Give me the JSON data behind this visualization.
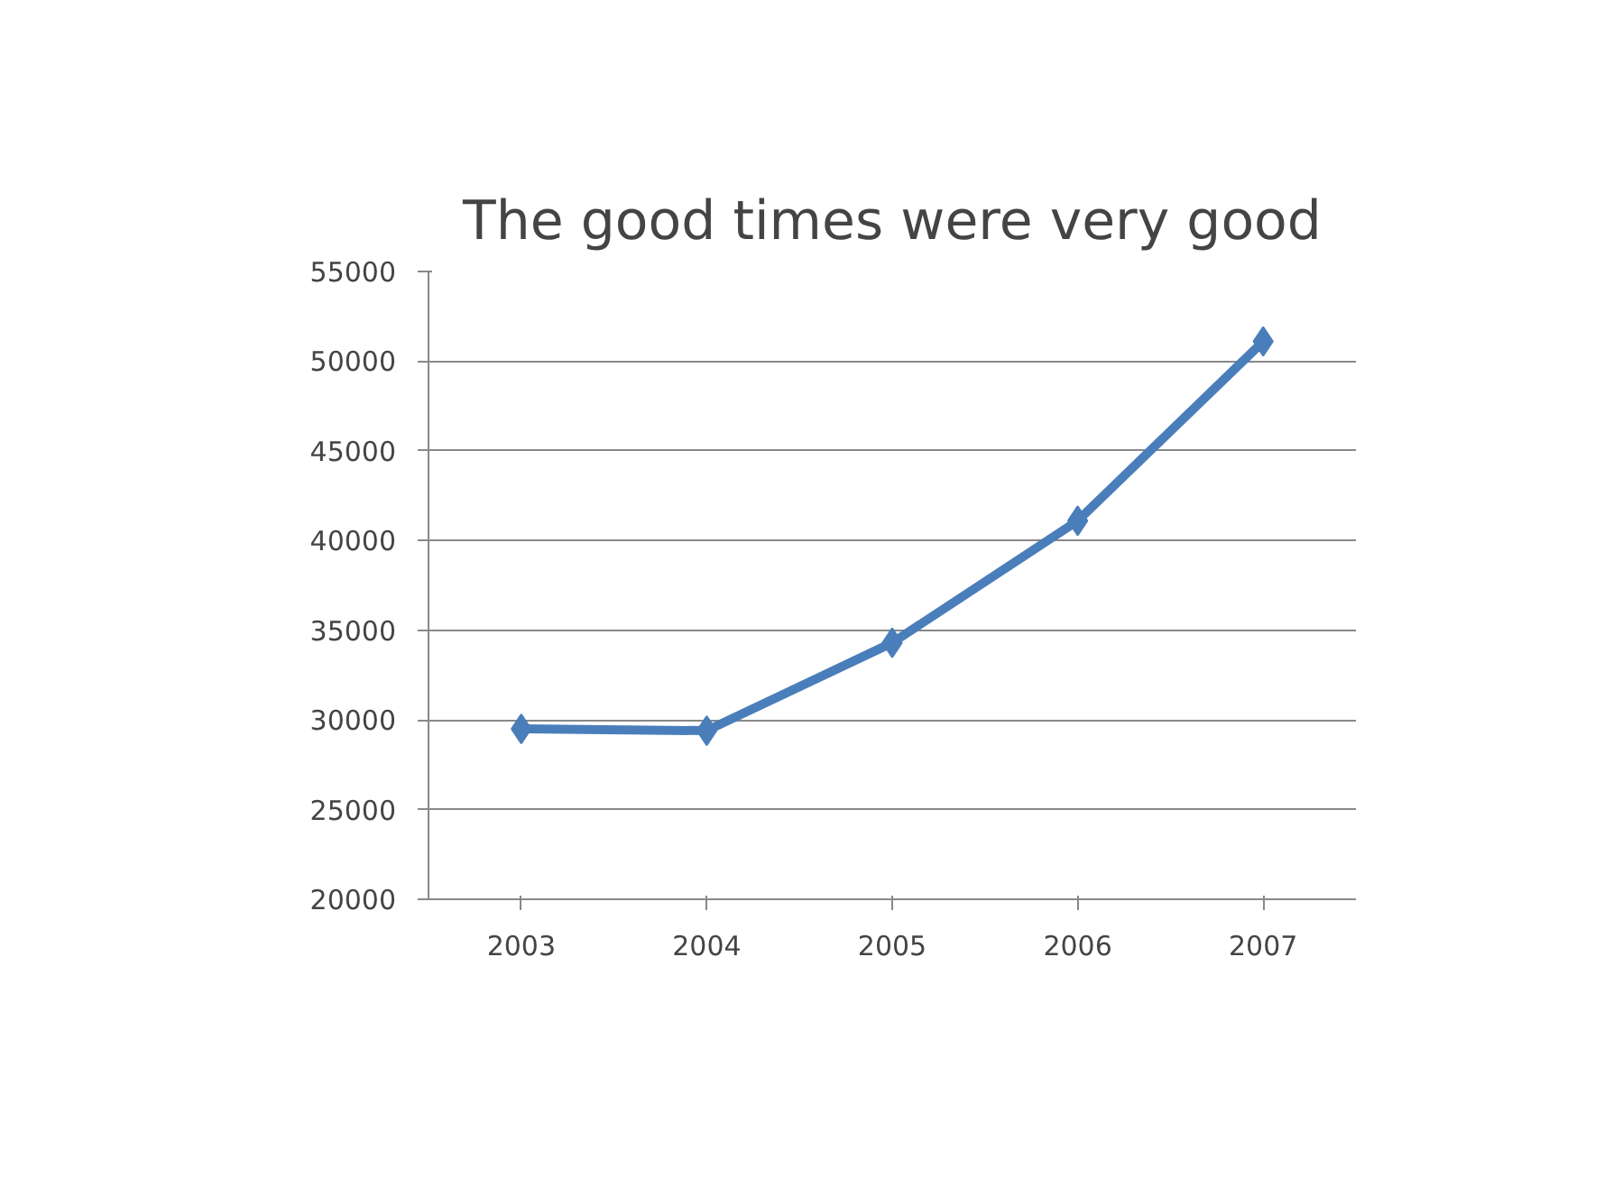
{
  "chart_data": {
    "type": "line",
    "title": "The good times were very good",
    "categories": [
      "2003",
      "2004",
      "2005",
      "2006",
      "2007"
    ],
    "series": [
      {
        "color": "#4a7ebb",
        "values": [
          29500,
          29400,
          34300,
          41100,
          51100
        ]
      }
    ],
    "ylim": [
      20000,
      55000
    ],
    "yticks": [
      20000,
      25000,
      30000,
      35000,
      40000,
      45000,
      50000,
      55000
    ],
    "grid": "y",
    "marker": "diamond",
    "line_style": "solid"
  }
}
